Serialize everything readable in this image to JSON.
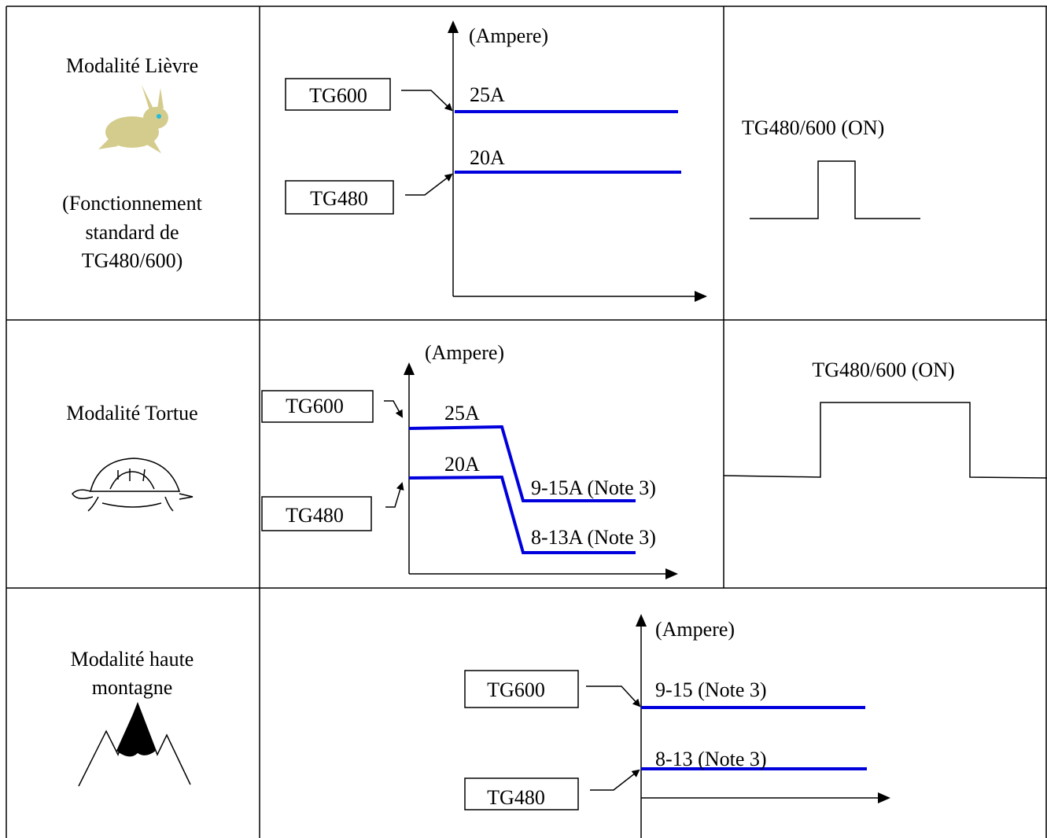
{
  "rows": [
    {
      "mode": [
        "Modalité Lièvre"
      ],
      "note": [
        "(Fonctionnement",
        "standard de",
        "TG480/600)"
      ],
      "graph": {
        "axis_label": "(Ampere)",
        "boxes": [
          "TG600",
          "TG480"
        ],
        "levels": [
          "25A",
          "20A"
        ]
      },
      "signal": "TG480/600 (ON)"
    },
    {
      "mode": [
        "Modalité Tortue"
      ],
      "graph": {
        "axis_label": "(Ampere)",
        "boxes": [
          "TG600",
          "TG480"
        ],
        "levels": [
          "25A",
          "20A",
          "9-15A (Note 3)",
          "8-13A (Note 3)"
        ]
      },
      "signal": "TG480/600 (ON)"
    },
    {
      "mode": [
        "Modalité haute",
        "montagne"
      ],
      "graph": {
        "axis_label": "(Ampere)",
        "boxes": [
          "TG600",
          "TG480"
        ],
        "levels": [
          "9-15 (Note 3)",
          "8-13 (Note 3)"
        ]
      }
    }
  ]
}
